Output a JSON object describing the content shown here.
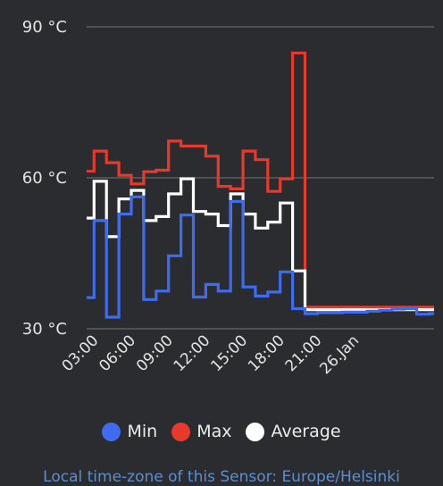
{
  "colors": {
    "background": "#2b2c2f",
    "grid": "#66676b",
    "min": "#3d6cf0",
    "max": "#e8392b",
    "average": "#ffffff",
    "footer": "#5b8fd0"
  },
  "legend": {
    "min": {
      "label": "Min",
      "color": "#3d6cf0"
    },
    "max": {
      "label": "Max",
      "color": "#e8392b"
    },
    "average": {
      "label": "Average",
      "color": "#ffffff"
    }
  },
  "footer": {
    "text": "Local time-zone of this Sensor: Europe/Helsinki"
  },
  "chart_data": {
    "type": "line",
    "step": true,
    "grid": true,
    "ylim": [
      30,
      90
    ],
    "yticks": [
      {
        "value": 30,
        "label": "30 °C"
      },
      {
        "value": 60,
        "label": "60 °C"
      },
      {
        "value": 90,
        "label": "90 °C"
      }
    ],
    "xlim": [
      2.0,
      30.0
    ],
    "xticks": [
      {
        "value": 3,
        "label": "03:00"
      },
      {
        "value": 6,
        "label": "06:00"
      },
      {
        "value": 9,
        "label": "09:00"
      },
      {
        "value": 12,
        "label": "12:00"
      },
      {
        "value": 15,
        "label": "15:00"
      },
      {
        "value": 18,
        "label": "18:00"
      },
      {
        "value": 21,
        "label": "21:00"
      },
      {
        "value": 24,
        "label": "26.Jan"
      }
    ],
    "x": [
      2.0,
      2.6,
      3.6,
      4.6,
      5.6,
      6.6,
      7.6,
      8.6,
      9.6,
      10.6,
      11.6,
      12.6,
      13.6,
      14.6,
      15.6,
      16.6,
      17.6,
      18.6,
      19.6,
      20.6,
      21.6,
      22.6,
      23.6,
      24.6,
      25.6,
      26.6,
      27.6,
      28.6,
      29.6,
      30.0
    ],
    "series": [
      {
        "name": "Min",
        "key": "min",
        "values": [
          36.2,
          51.5,
          32.3,
          52.8,
          56.2,
          35.8,
          37.5,
          44.5,
          52.6,
          36.3,
          38.8,
          37.5,
          55.3,
          38.3,
          36.5,
          37.3,
          41.3,
          34.0,
          33.0,
          33.2,
          33.2,
          33.3,
          33.3,
          33.5,
          33.7,
          33.9,
          34.0,
          32.9,
          33.0,
          33.0
        ]
      },
      {
        "name": "Max",
        "key": "max",
        "values": [
          61.3,
          65.3,
          63.0,
          60.5,
          58.8,
          61.2,
          61.5,
          67.3,
          66.3,
          66.3,
          64.3,
          58.3,
          57.8,
          65.3,
          63.6,
          57.3,
          59.8,
          84.8,
          34.3,
          34.3,
          34.3,
          34.3,
          34.3,
          34.3,
          34.3,
          34.3,
          34.3,
          34.3,
          34.3,
          34.3
        ]
      },
      {
        "name": "Average",
        "key": "average",
        "values": [
          52.0,
          59.3,
          48.3,
          55.8,
          57.5,
          51.5,
          52.3,
          56.8,
          59.8,
          53.3,
          52.8,
          50.5,
          56.8,
          52.8,
          50.0,
          51.2,
          55.0,
          41.5,
          33.8,
          33.8,
          33.8,
          33.8,
          33.8,
          33.8,
          33.8,
          33.8,
          33.8,
          33.8,
          33.8,
          33.8
        ]
      }
    ]
  }
}
